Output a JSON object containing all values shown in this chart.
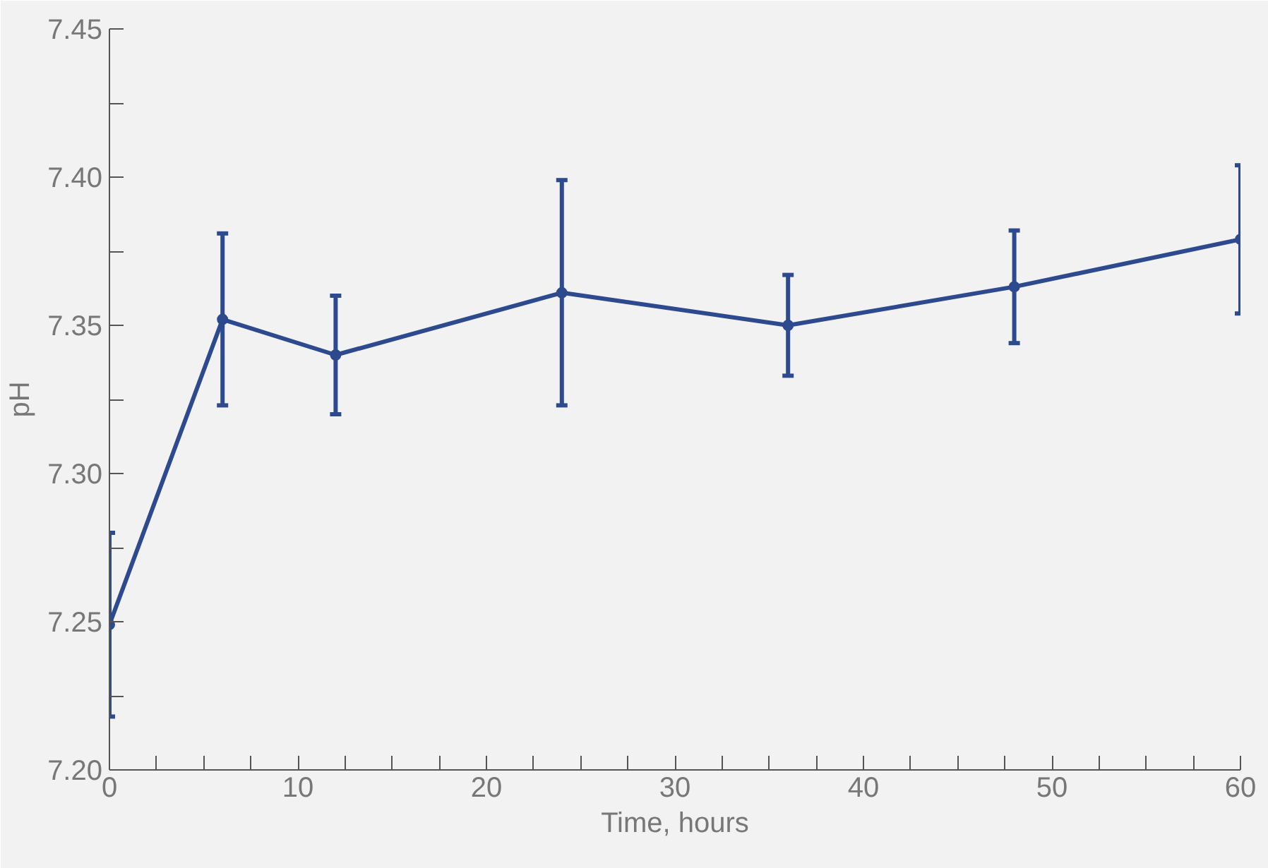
{
  "chart_data": {
    "type": "line",
    "xlabel": "Time, hours",
    "ylabel": "pH",
    "x": [
      0,
      6,
      12,
      24,
      36,
      48,
      60
    ],
    "series": [
      {
        "color": "#2e4a8e",
        "values": [
          7.249,
          7.352,
          7.34,
          7.361,
          7.35,
          7.363,
          7.379
        ],
        "errors": [
          0.031,
          0.029,
          0.02,
          0.038,
          0.017,
          0.019,
          0.025
        ]
      }
    ],
    "xlim": [
      0,
      60
    ],
    "ylim": [
      7.2,
      7.45
    ],
    "xticks": [
      0,
      {
        "value": 2.5,
        "label": null
      },
      {
        "value": 5,
        "label": null
      },
      {
        "value": 7.5,
        "label": null
      },
      10,
      {
        "value": 12.5,
        "label": null
      },
      {
        "value": 15,
        "label": null
      },
      {
        "value": 17.5,
        "label": null
      },
      20,
      {
        "value": 22.5,
        "label": null
      },
      {
        "value": 25,
        "label": null
      },
      {
        "value": 27.5,
        "label": null
      },
      30,
      {
        "value": 32.5,
        "label": null
      },
      {
        "value": 35,
        "label": null
      },
      {
        "value": 37.5,
        "label": null
      },
      40,
      {
        "value": 42.5,
        "label": null
      },
      {
        "value": 45,
        "label": null
      },
      {
        "value": 47.5,
        "label": null
      },
      50,
      {
        "value": 52.5,
        "label": null
      },
      {
        "value": 55,
        "label": null
      },
      {
        "value": 57.5,
        "label": null
      },
      60
    ],
    "yticks": [
      {
        "value": 7.2,
        "label": "7.20"
      },
      {
        "value": 7.225,
        "label": null
      },
      {
        "value": 7.25,
        "label": "7.25"
      },
      {
        "value": 7.275,
        "label": null
      },
      {
        "value": 7.3,
        "label": "7.30"
      },
      {
        "value": 7.325,
        "label": null
      },
      {
        "value": 7.35,
        "label": "7.35"
      },
      {
        "value": 7.375,
        "label": null
      },
      {
        "value": 7.4,
        "label": "7.40"
      },
      {
        "value": 7.425,
        "label": null
      },
      {
        "value": 7.45,
        "label": "7.45"
      }
    ],
    "marker": "circle",
    "grid": false
  }
}
